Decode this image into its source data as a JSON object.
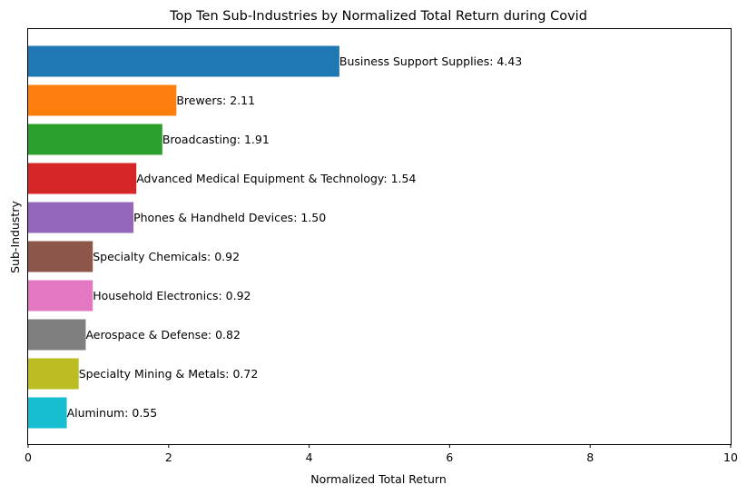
{
  "chart_data": {
    "type": "bar",
    "orientation": "horizontal",
    "title": "Top Ten Sub-Industries by Normalized Total Return during Covid",
    "xlabel": "Normalized Total Return",
    "ylabel": "Sub-Industry",
    "xlim": [
      0,
      10
    ],
    "xticks": [
      0,
      2,
      4,
      6,
      8,
      10
    ],
    "grid": false,
    "legend": "none",
    "categories": [
      "Business Support Supplies",
      "Brewers",
      "Broadcasting",
      "Advanced Medical Equipment & Technology",
      "Phones & Handheld Devices",
      "Specialty Chemicals",
      "Household Electronics",
      "Aerospace & Defense",
      "Specialty Mining & Metals",
      "Aluminum"
    ],
    "values": [
      4.43,
      2.11,
      1.91,
      1.54,
      1.5,
      0.92,
      0.92,
      0.82,
      0.72,
      0.55
    ],
    "data_labels": [
      "Business Support Supplies: 4.43",
      "Brewers: 2.11",
      "Broadcasting: 1.91",
      "Advanced Medical Equipment & Technology: 1.54",
      "Phones & Handheld Devices: 1.50",
      "Specialty Chemicals: 0.92",
      "Household Electronics: 0.92",
      "Aerospace & Defense: 0.82",
      "Specialty Mining & Metals: 0.72",
      "Aluminum: 0.55"
    ],
    "colors": [
      "#1f77b4",
      "#ff7f0e",
      "#2ca02c",
      "#d62728",
      "#9467bd",
      "#8c564b",
      "#e377c2",
      "#7f7f7f",
      "#bcbd22",
      "#17becf"
    ]
  }
}
